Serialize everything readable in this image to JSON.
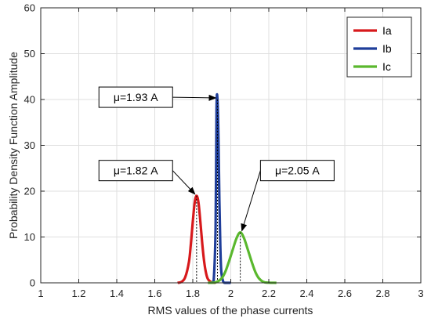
{
  "chart_data": {
    "type": "line",
    "xlabel": "RMS values of the phase currents",
    "ylabel": "Probability Density Function Amplitude",
    "xlim": [
      1,
      3
    ],
    "ylim": [
      0,
      60
    ],
    "xticks": [
      "1",
      "1.2",
      "1.4",
      "1.6",
      "1.8",
      "2",
      "2.2",
      "2.4",
      "2.6",
      "2.8",
      "3"
    ],
    "yticks": [
      "0",
      "10",
      "20",
      "30",
      "40",
      "50",
      "60"
    ],
    "grid": true,
    "legend_position": "top-right",
    "series": [
      {
        "name": "Ia",
        "color": "#d7191c",
        "mean": 1.82,
        "peak": 19,
        "range": [
          1.72,
          1.92
        ],
        "x": [
          1.72,
          1.74,
          1.76,
          1.78,
          1.79,
          1.8,
          1.81,
          1.82,
          1.83,
          1.84,
          1.85,
          1.86,
          1.87,
          1.88,
          1.9,
          1.92
        ],
        "y": [
          0,
          0.2,
          1.2,
          4.6,
          8.5,
          13.3,
          17.5,
          19,
          17.5,
          13.3,
          8.5,
          4.6,
          2.1,
          0.8,
          0.1,
          0
        ]
      },
      {
        "name": "Ib",
        "color": "#1f3e9a",
        "mean": 1.93,
        "peak": 40,
        "range": [
          1.9,
          2.0
        ],
        "x": [
          1.9,
          1.91,
          1.92,
          1.925,
          1.93,
          1.935,
          1.94,
          1.945,
          1.95,
          1.96,
          1.97,
          2.0
        ],
        "y": [
          0,
          0.5,
          12,
          38,
          40,
          32,
          18,
          8,
          2.5,
          0.3,
          0,
          0
        ]
      },
      {
        "name": "Ic",
        "color": "#5ab82e",
        "mean": 2.05,
        "peak": 11,
        "range": [
          1.88,
          2.24
        ],
        "x": [
          1.88,
          1.92,
          1.95,
          1.97,
          1.99,
          2.01,
          2.03,
          2.05,
          2.07,
          2.09,
          2.11,
          2.13,
          2.15,
          2.18,
          2.24
        ],
        "y": [
          0,
          0.1,
          0.9,
          2.3,
          4.6,
          7.2,
          9.7,
          11,
          9.7,
          7.2,
          4.6,
          2.3,
          0.9,
          0.1,
          0
        ]
      }
    ],
    "annotations": [
      {
        "text": "μ=1.93 A",
        "series": "Ib",
        "x": 1.93,
        "y": 40,
        "label_x": 1.5,
        "label_y": 40.5
      },
      {
        "text": "μ=1.82 A",
        "series": "Ia",
        "x": 1.82,
        "y": 19,
        "label_x": 1.5,
        "label_y": 24.5
      },
      {
        "text": "μ=2.05 A",
        "series": "Ic",
        "x": 2.05,
        "y": 11,
        "label_x": 2.35,
        "label_y": 24.5
      }
    ]
  }
}
